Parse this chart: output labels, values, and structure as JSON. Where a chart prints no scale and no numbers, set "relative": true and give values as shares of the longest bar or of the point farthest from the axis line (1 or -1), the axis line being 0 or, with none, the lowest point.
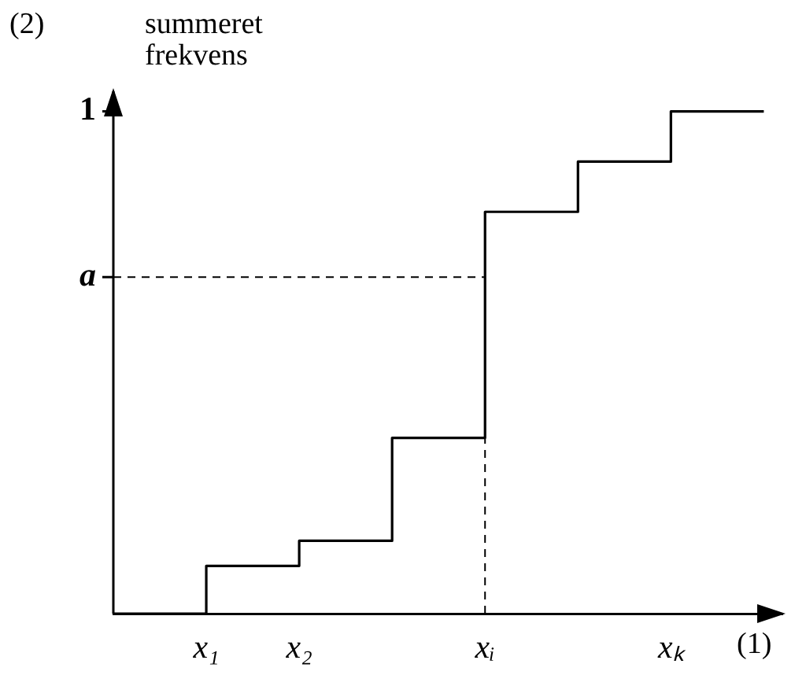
{
  "chart_data": {
    "type": "step",
    "ylabel": "summeret frekvens",
    "xlabel": "(1)",
    "relative": true,
    "annotations": [
      "(2)",
      "1"
    ],
    "categories": [
      null,
      "x₁",
      "x₂",
      null,
      "xᵢ",
      null,
      "xₖ",
      null
    ],
    "values": [
      0,
      0.095,
      0.145,
      0.35,
      0.8,
      0.9,
      1,
      1
    ],
    "color": "#000000",
    "ref_lines": [
      {
        "axis": "y",
        "value": 0.67,
        "label": "a",
        "line_style": "dashed",
        "color": "#000000"
      },
      {
        "axis": "x",
        "value": "xᵢ",
        "line_style": "dashed",
        "color": "#000000"
      }
    ],
    "marker": "none",
    "grid": false,
    "legend": false
  }
}
